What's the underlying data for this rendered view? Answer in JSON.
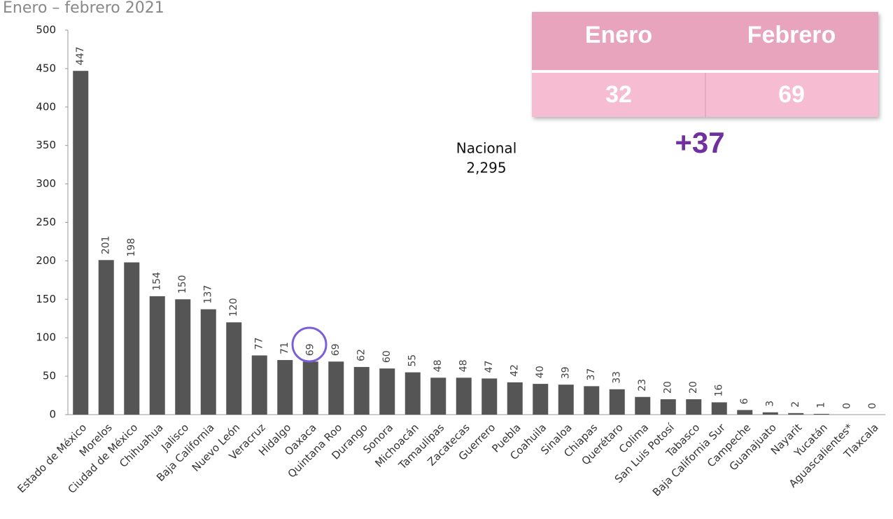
{
  "chart_data": {
    "type": "bar",
    "title": "Enero – febrero 2021",
    "categories": [
      "Estado de México",
      "Morelos",
      "Ciudad de México",
      "Chihuahua",
      "Jalisco",
      "Baja California",
      "Nuevo León",
      "Veracruz",
      "Hidalgo",
      "Oaxaca",
      "Quintana Roo",
      "Durango",
      "Sonora",
      "Michoacán",
      "Tamaulipas",
      "Zacatecas",
      "Guerrero",
      "Puebla",
      "Coahuila",
      "Sinaloa",
      "Chiapas",
      "Querétaro",
      "Colima",
      "San Luis Potosí",
      "Tabasco",
      "Baja California Sur",
      "Campeche",
      "Guanajuato",
      "Nayarit",
      "Yucatán",
      "Aguascalientes*",
      "Tlaxcala"
    ],
    "values": [
      447,
      201,
      198,
      154,
      150,
      137,
      120,
      77,
      71,
      69,
      69,
      62,
      60,
      55,
      48,
      48,
      47,
      42,
      40,
      39,
      37,
      33,
      23,
      20,
      20,
      16,
      6,
      3,
      2,
      1,
      0,
      0
    ],
    "color": "#555555",
    "ylim": [
      0,
      500
    ],
    "yticks": [
      0,
      50,
      100,
      150,
      200,
      250,
      300,
      350,
      400,
      450,
      500
    ],
    "annotation": [
      "Nacional",
      "2,295"
    ]
  },
  "table": {
    "header": [
      "Enero",
      "Febrero"
    ],
    "rows": [
      [
        32,
        69
      ]
    ],
    "difference": "+37"
  }
}
